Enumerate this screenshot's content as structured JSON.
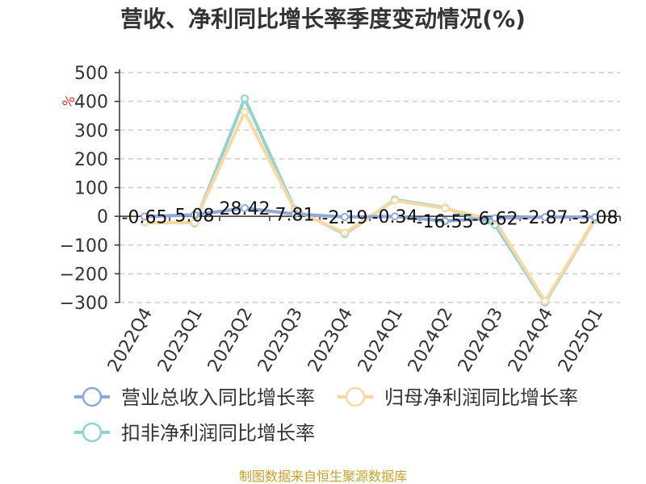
{
  "chart_data": {
    "type": "line",
    "title": "营收、净利同比增长率季度变动情况(%)",
    "y_unit": "%",
    "categories": [
      "2022Q4",
      "2023Q1",
      "2023Q2",
      "2023Q3",
      "2023Q4",
      "2024Q1",
      "2024Q2",
      "2024Q3",
      "2024Q4",
      "2025Q1"
    ],
    "ylim": [
      -300,
      500
    ],
    "yticks": [
      500,
      400,
      300,
      200,
      100,
      0,
      -100,
      -200,
      -300
    ],
    "grid": true,
    "legend_position": "bottom",
    "series": [
      {
        "name": "营业总收入同比增长率",
        "color": "#8fa9d9",
        "values": [
          -0.65,
          5.08,
          28.42,
          7.81,
          -2.19,
          -0.34,
          -16.55,
          -6.62,
          -2.87,
          -3.08
        ],
        "data_labels": [
          "-0.65",
          "5.08",
          "28.42",
          "7.81",
          "-2.19",
          "-0.34",
          "-16.55",
          "-6.62",
          "-2.87",
          "-3.08"
        ]
      },
      {
        "name": "归母净利润同比增长率",
        "color": "#fad9a1",
        "values": [
          -22,
          -22,
          363,
          22,
          -58,
          55,
          28,
          -15,
          -295,
          -8
        ]
      },
      {
        "name": "扣非净利润同比增长率",
        "color": "#8fd3d3",
        "values": [
          null,
          -25,
          410,
          25,
          -62,
          58,
          30,
          -30,
          -300,
          -10
        ]
      }
    ],
    "source": "制图数据来自恒生聚源数据库"
  }
}
